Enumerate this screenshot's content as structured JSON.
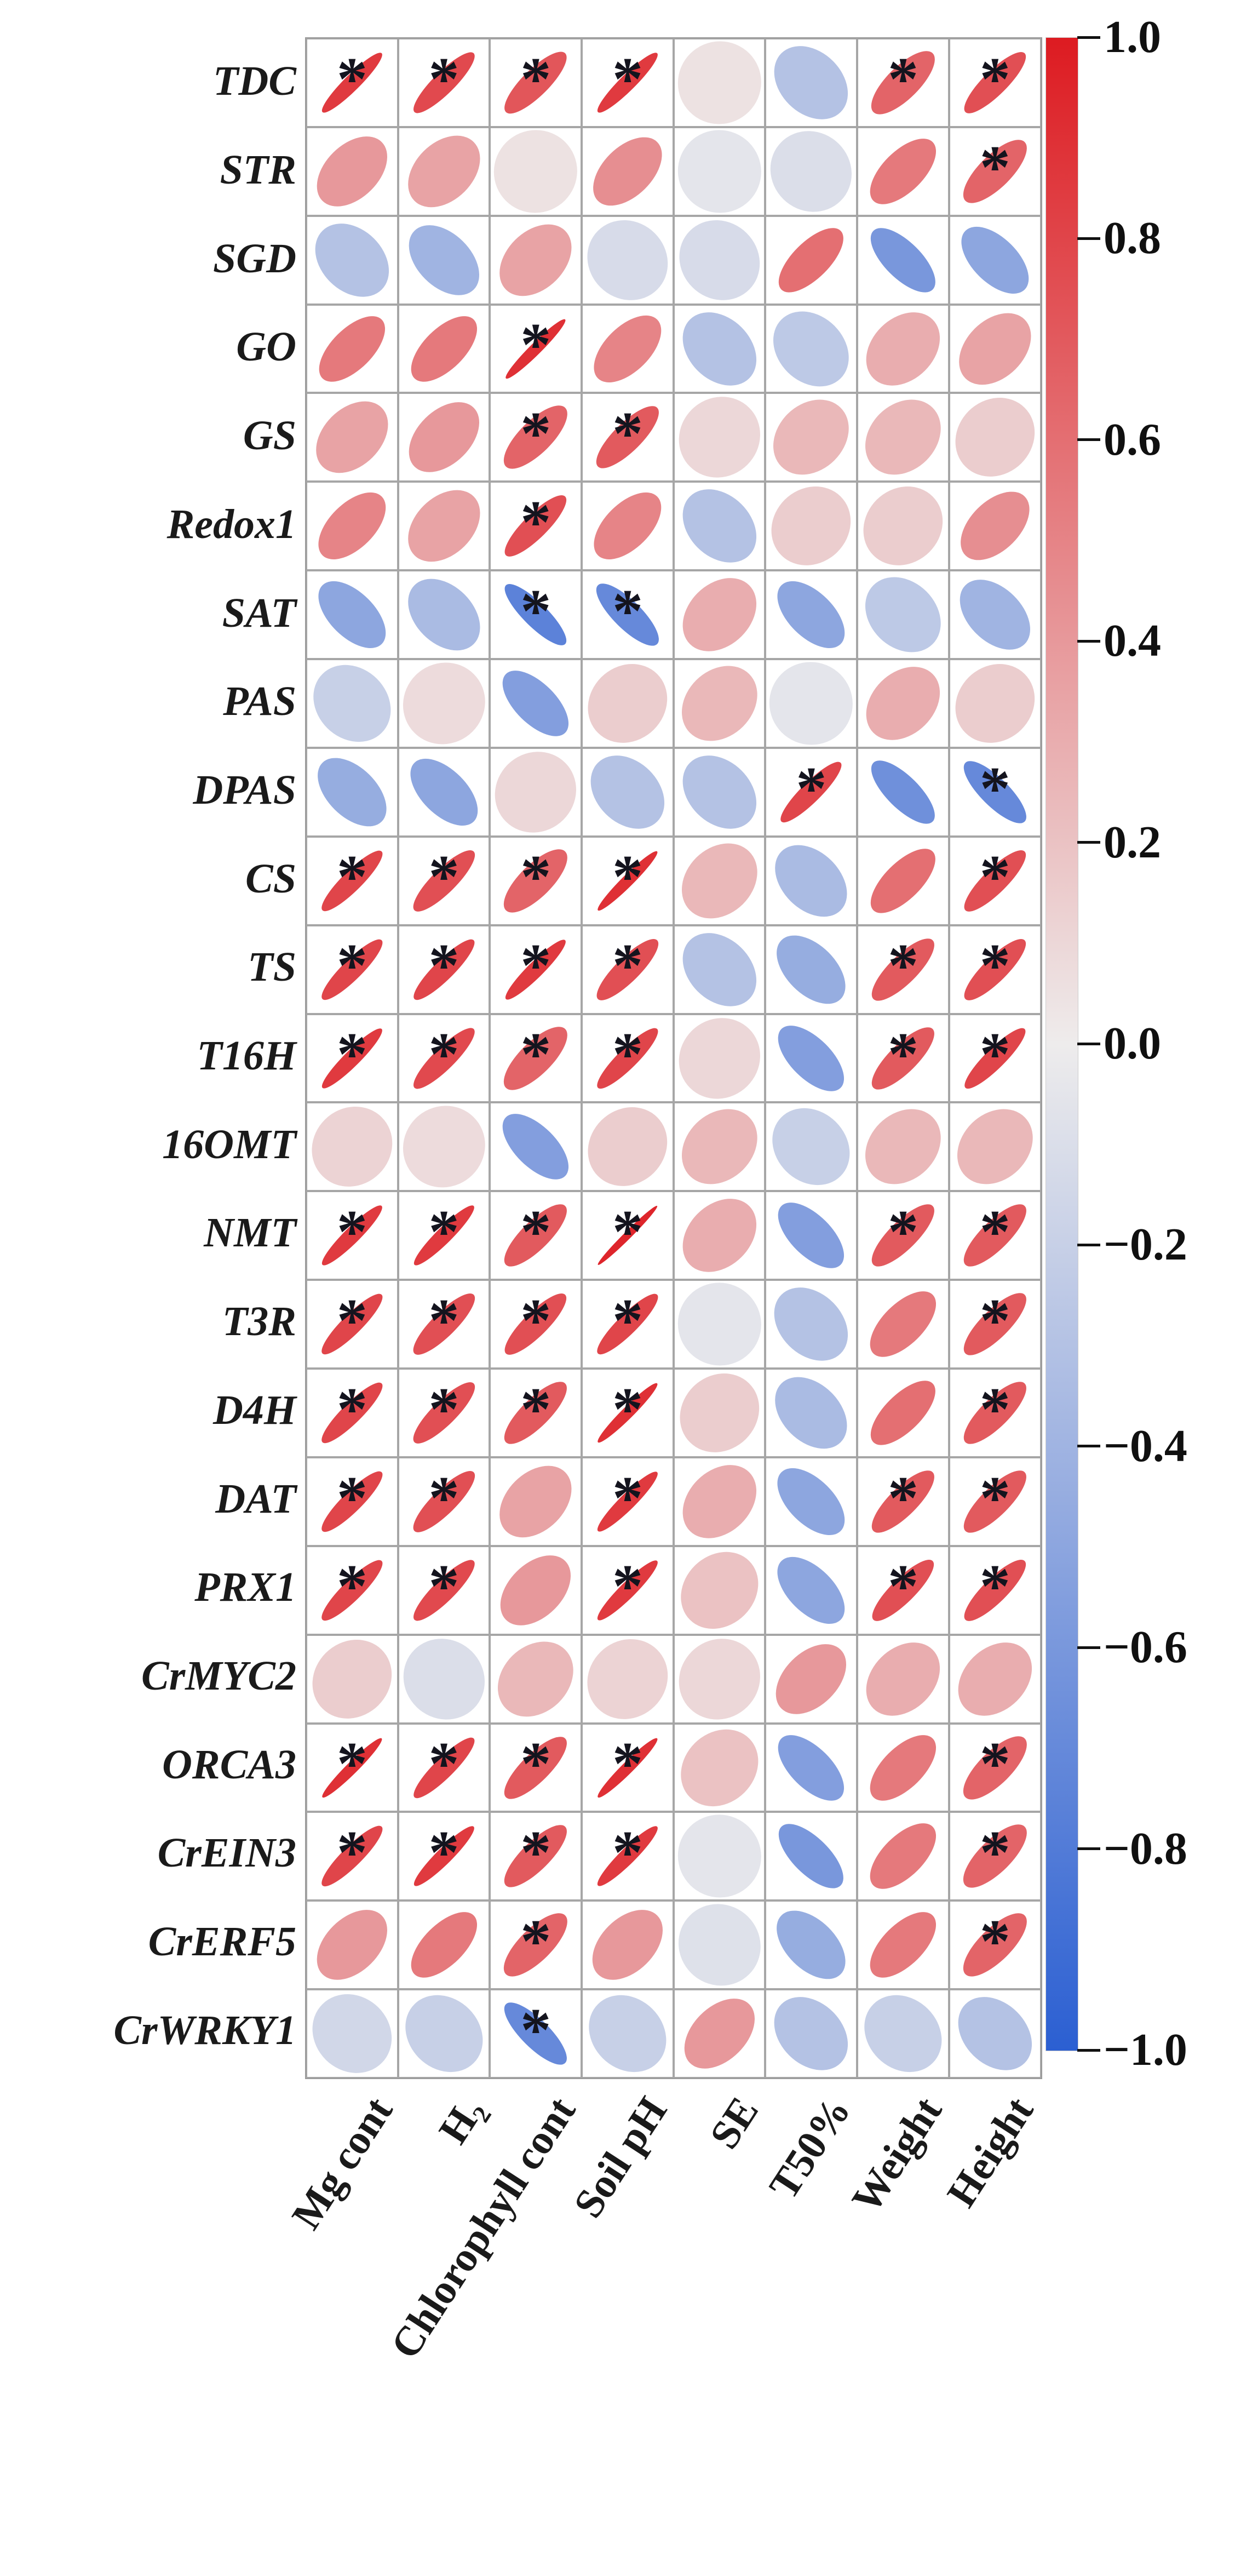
{
  "figure_title": "",
  "chart_data": {
    "type": "heatmap",
    "subtype": "correlation-ellipse-matrix",
    "description": "Correlation matrix between gene expression (rows) and physiological traits (columns); ellipse orientation/narrowness encodes correlation sign and strength, asterisk marks significance",
    "rows": [
      "TDC",
      "STR",
      "SGD",
      "GO",
      "GS",
      "Redox1",
      "SAT",
      "PAS",
      "DPAS",
      "CS",
      "TS",
      "T16H",
      "16OMT",
      "NMT",
      "T3R",
      "D4H",
      "DAT",
      "PRX1",
      "CrMYC2",
      "ORCA3",
      "CrEIN3",
      "CrERF5",
      "CrWRKY1"
    ],
    "columns": [
      "Mg cont",
      "H₂",
      "Chlorophyll cont",
      "Soil pH",
      "SE",
      "T50%",
      "Weight",
      "Height"
    ],
    "values": [
      [
        0.85,
        0.78,
        0.72,
        0.85,
        0.05,
        -0.3,
        0.65,
        0.75
      ],
      [
        0.4,
        0.35,
        0.05,
        0.45,
        -0.05,
        -0.1,
        0.55,
        0.65
      ],
      [
        -0.3,
        -0.4,
        0.35,
        -0.12,
        -0.12,
        0.6,
        -0.6,
        -0.5
      ],
      [
        0.55,
        0.55,
        0.9,
        0.5,
        -0.3,
        -0.25,
        0.3,
        0.35
      ],
      [
        0.35,
        0.4,
        0.65,
        0.7,
        0.1,
        0.25,
        0.25,
        0.15
      ],
      [
        0.5,
        0.35,
        0.75,
        0.5,
        -0.3,
        0.15,
        0.15,
        0.45
      ],
      [
        -0.5,
        -0.35,
        -0.75,
        -0.7,
        0.3,
        -0.5,
        -0.25,
        -0.4
      ],
      [
        -0.2,
        0.08,
        -0.55,
        0.15,
        0.25,
        -0.05,
        0.3,
        0.15
      ],
      [
        -0.45,
        -0.5,
        0.1,
        -0.3,
        -0.3,
        0.8,
        -0.65,
        -0.7
      ],
      [
        0.8,
        0.75,
        0.65,
        0.9,
        0.25,
        -0.35,
        0.6,
        0.75
      ],
      [
        0.8,
        0.8,
        0.85,
        0.75,
        -0.3,
        -0.45,
        0.7,
        0.75
      ],
      [
        0.85,
        0.78,
        0.65,
        0.8,
        0.1,
        -0.55,
        0.7,
        0.8
      ],
      [
        0.12,
        0.08,
        -0.55,
        0.15,
        0.25,
        -0.2,
        0.25,
        0.25
      ],
      [
        0.85,
        0.85,
        0.7,
        0.95,
        0.3,
        -0.55,
        0.7,
        0.7
      ],
      [
        0.8,
        0.75,
        0.75,
        0.8,
        -0.05,
        -0.3,
        0.55,
        0.7
      ],
      [
        0.8,
        0.75,
        0.7,
        0.9,
        0.15,
        -0.35,
        0.6,
        0.7
      ],
      [
        0.8,
        0.75,
        0.35,
        0.85,
        0.3,
        -0.5,
        0.7,
        0.7
      ],
      [
        0.8,
        0.78,
        0.4,
        0.85,
        0.2,
        -0.5,
        0.75,
        0.75
      ],
      [
        0.15,
        -0.1,
        0.25,
        0.12,
        0.1,
        0.4,
        0.3,
        0.3
      ],
      [
        0.9,
        0.8,
        0.7,
        0.9,
        0.2,
        -0.55,
        0.55,
        0.65
      ],
      [
        0.8,
        0.85,
        0.7,
        0.85,
        -0.05,
        -0.6,
        0.55,
        0.65
      ],
      [
        0.4,
        0.55,
        0.65,
        0.4,
        -0.08,
        -0.45,
        0.55,
        0.65
      ],
      [
        -0.15,
        -0.2,
        -0.7,
        -0.2,
        0.4,
        -0.3,
        -0.2,
        -0.3
      ]
    ],
    "significance": [
      [
        1,
        1,
        1,
        1,
        0,
        0,
        1,
        1
      ],
      [
        0,
        0,
        0,
        0,
        0,
        0,
        0,
        1
      ],
      [
        0,
        0,
        0,
        0,
        0,
        0,
        0,
        0
      ],
      [
        0,
        0,
        1,
        0,
        0,
        0,
        0,
        0
      ],
      [
        0,
        0,
        1,
        1,
        0,
        0,
        0,
        0
      ],
      [
        0,
        0,
        1,
        0,
        0,
        0,
        0,
        0
      ],
      [
        0,
        0,
        1,
        1,
        0,
        0,
        0,
        0
      ],
      [
        0,
        0,
        0,
        0,
        0,
        0,
        0,
        0
      ],
      [
        0,
        0,
        0,
        0,
        0,
        1,
        0,
        1
      ],
      [
        1,
        1,
        1,
        1,
        0,
        0,
        0,
        1
      ],
      [
        1,
        1,
        1,
        1,
        0,
        0,
        1,
        1
      ],
      [
        1,
        1,
        1,
        1,
        0,
        0,
        1,
        1
      ],
      [
        0,
        0,
        0,
        0,
        0,
        0,
        0,
        0
      ],
      [
        1,
        1,
        1,
        1,
        0,
        0,
        1,
        1
      ],
      [
        1,
        1,
        1,
        1,
        0,
        0,
        0,
        1
      ],
      [
        1,
        1,
        1,
        1,
        0,
        0,
        0,
        1
      ],
      [
        1,
        1,
        0,
        1,
        0,
        0,
        1,
        1
      ],
      [
        1,
        1,
        0,
        1,
        0,
        0,
        1,
        1
      ],
      [
        0,
        0,
        0,
        0,
        0,
        0,
        0,
        0
      ],
      [
        1,
        1,
        1,
        1,
        0,
        0,
        0,
        1
      ],
      [
        1,
        1,
        1,
        1,
        0,
        0,
        0,
        1
      ],
      [
        0,
        0,
        1,
        0,
        0,
        0,
        0,
        1
      ],
      [
        0,
        0,
        1,
        0,
        0,
        0,
        0,
        0
      ]
    ],
    "significance_marker": "*",
    "grid": true,
    "legend_position": "right",
    "colorbar": {
      "min": -1.0,
      "max": 1.0,
      "tick_labels": [
        "1.0",
        "0.8",
        "0.6",
        "0.4",
        "0.2",
        "0.0",
        "−0.2",
        "−0.4",
        "−0.6",
        "−0.8",
        "−1.0"
      ],
      "color_positive": "#dd1b21",
      "color_zero": "#eeecec",
      "color_negative": "#2b5fd2"
    },
    "colors": {
      "grid_line": "#a6a6a6",
      "label_text": "#1a1a1a",
      "asterisk": "#14141e",
      "background": "#ffffff"
    }
  }
}
